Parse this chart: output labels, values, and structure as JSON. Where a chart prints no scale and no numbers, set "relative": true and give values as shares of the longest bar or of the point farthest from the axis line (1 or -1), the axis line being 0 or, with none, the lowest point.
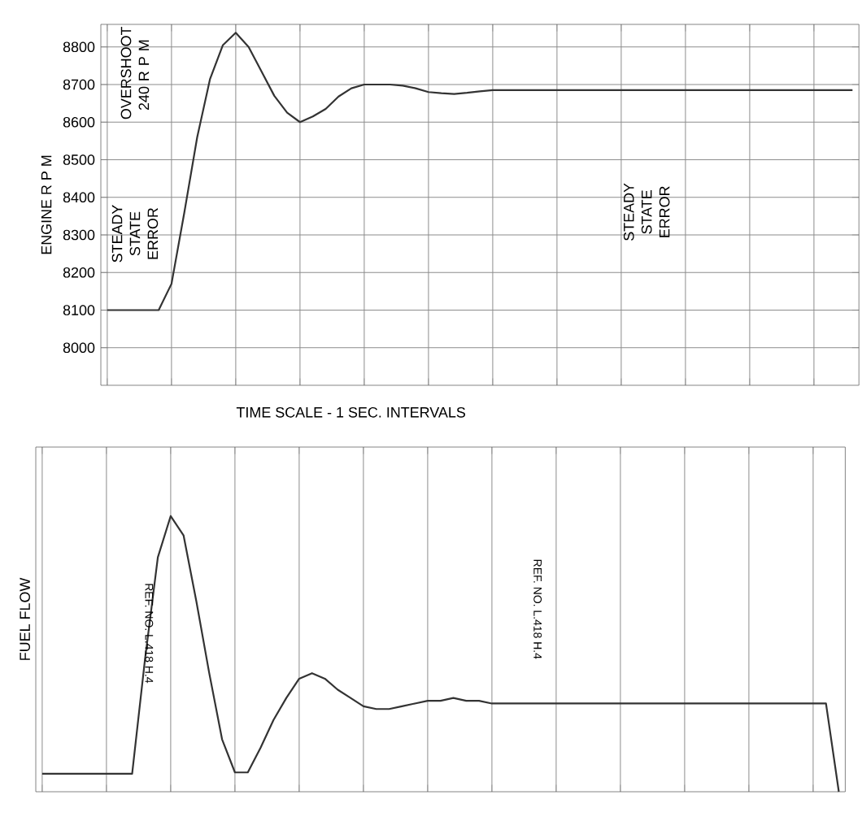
{
  "chart_data": [
    {
      "type": "line",
      "ylabel": "ENGINE R P M",
      "color": "#333333",
      "marker": "none",
      "line_style": "solid",
      "grid": true,
      "tick_labels": "y",
      "ylim": [
        7900,
        8860
      ],
      "yticks": [
        8000,
        8100,
        8200,
        8300,
        8400,
        8500,
        8600,
        8700,
        8800
      ],
      "categories": [
        null,
        null,
        null,
        null,
        null,
        null,
        null,
        null,
        null,
        null,
        null,
        null,
        null,
        null,
        null,
        null,
        null,
        null,
        null,
        null,
        null,
        null,
        null,
        null,
        null,
        null,
        null,
        null,
        null,
        null,
        null,
        null,
        null,
        null,
        null,
        null,
        null,
        null,
        null,
        null,
        null,
        null,
        null,
        null,
        null,
        null,
        null,
        null,
        null,
        null,
        null,
        null,
        null,
        null,
        null,
        null,
        null,
        null,
        null
      ],
      "values": [
        8100,
        8100,
        8100,
        8100,
        8100,
        8170,
        8360,
        8560,
        8715,
        8805,
        8838,
        8800,
        8735,
        8670,
        8625,
        8600,
        8615,
        8635,
        8668,
        8690,
        8700,
        8700,
        8700,
        8697,
        8690,
        8680,
        8677,
        8675,
        8678,
        8682,
        8685,
        8685,
        8685,
        8685,
        8685,
        8685,
        8685,
        8685,
        8685,
        8685,
        8685,
        8685,
        8685,
        8685,
        8685,
        8685,
        8685,
        8685,
        8685,
        8685,
        8685,
        8685,
        8685,
        8685,
        8685,
        8685,
        8685,
        8685,
        8685
      ],
      "annotations": [
        "TIME SCALE - 1 SEC. INTERVALS",
        "OVERSHOOT 240 R P M",
        "STEADY STATE ERROR",
        "STEADY STATE ERROR"
      ]
    },
    {
      "type": "line",
      "ylabel": "FUEL FLOW",
      "color": "#333333",
      "marker": "none",
      "line_style": "solid",
      "grid": "x",
      "tick_labels": false,
      "relative": true,
      "categories": [
        null,
        null,
        null,
        null,
        null,
        null,
        null,
        null,
        null,
        null,
        null,
        null,
        null,
        null,
        null,
        null,
        null,
        null,
        null,
        null,
        null,
        null,
        null,
        null,
        null,
        null,
        null,
        null,
        null,
        null,
        null,
        null,
        null,
        null,
        null,
        null,
        null,
        null,
        null,
        null,
        null,
        null,
        null,
        null,
        null,
        null,
        null,
        null,
        null,
        null,
        null,
        null,
        null,
        null,
        null,
        null,
        null,
        null,
        null,
        null,
        null,
        null,
        null
      ],
      "values": [
        0.065,
        0.065,
        0.065,
        0.065,
        0.065,
        0.065,
        0.065,
        0.065,
        0.48,
        0.85,
        1,
        0.93,
        0.69,
        0.43,
        0.19,
        0.07,
        0.07,
        0.16,
        0.26,
        0.34,
        0.41,
        0.43,
        0.41,
        0.37,
        0.34,
        0.31,
        0.3,
        0.3,
        0.31,
        0.32,
        0.33,
        0.33,
        0.34,
        0.33,
        0.33,
        0.32,
        0.32,
        0.32,
        0.32,
        0.32,
        0.32,
        0.32,
        0.32,
        0.32,
        0.32,
        0.32,
        0.32,
        0.32,
        0.32,
        0.32,
        0.32,
        0.32,
        0.32,
        0.32,
        0.32,
        0.32,
        0.32,
        0.32,
        0.32,
        0.32,
        0.32,
        0.32,
        0
      ],
      "annotations": [
        "REF. NO. L.418 H.4",
        "REF. NO. L.418 H.4"
      ]
    }
  ]
}
